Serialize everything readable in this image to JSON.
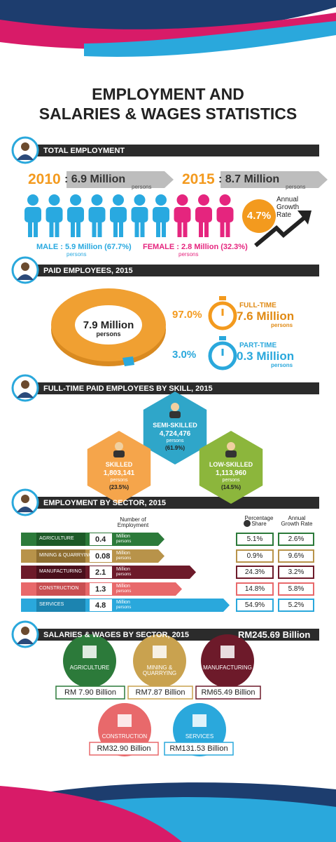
{
  "header": {
    "title_lines": [
      "EMPLOYMENT AND",
      "SALARIES & WAGES STATISTICS"
    ]
  },
  "total_employment": {
    "heading": "TOTAL EMPLOYMENT",
    "years": [
      {
        "year": "2010",
        "value": ": 6.9 Million",
        "unit": "persons"
      },
      {
        "year": "2015",
        "value": ": 8.7 Million",
        "unit": "persons"
      }
    ],
    "growth": {
      "value": "4.7%",
      "label": "Annual Growth Rate"
    },
    "male": {
      "label": "MALE : 5.9 Million (67.7%)",
      "unit": "persons"
    },
    "female": {
      "label": "FEMALE : 2.8 Million (32.3%)",
      "unit": "persons"
    }
  },
  "paid_employees": {
    "heading": "PAID EMPLOYEES, 2015",
    "total": "7.9 Million",
    "total_unit": "persons",
    "types": [
      {
        "share": "97.0%",
        "label": "FULL-TIME",
        "value": "7.6 Million",
        "unit": "persons"
      },
      {
        "share": "3.0%",
        "label": "PART-TIME",
        "value": "0.3 Million",
        "unit": "persons"
      }
    ]
  },
  "skills": {
    "heading": "FULL-TIME PAID EMPLOYEES BY SKILL, 2015",
    "groups": [
      {
        "label": "SEMI-SKILLED",
        "value": "4,724,476",
        "unit": "persons",
        "share": "(61.9%)"
      },
      {
        "label": "SKILLED",
        "value": "1,803,141",
        "unit": "persons",
        "share": "(23.5%)"
      },
      {
        "label": "LOW-SKILLED",
        "value": "1,113,960",
        "unit": "persons",
        "share": "(14.5%)"
      }
    ]
  },
  "sectors": {
    "heading": "EMPLOYMENT BY SECTOR, 2015",
    "columns": [
      "Number of Employment",
      "Percentage Share",
      "Annual Growth Rate"
    ],
    "rows": [
      {
        "name": "AGRICULTURE",
        "employment": "0.4",
        "unit": "Million",
        "unit2": "persons",
        "share": "5.1%",
        "growth": "2.6%"
      },
      {
        "name": "MINING & QUARRYING",
        "employment": "0.08",
        "unit": "Million",
        "unit2": "persons",
        "share": "0.9%",
        "growth": "9.6%"
      },
      {
        "name": "MANUFACTURING",
        "employment": "2.1",
        "unit": "Million",
        "unit2": "persons",
        "share": "24.3%",
        "growth": "3.2%"
      },
      {
        "name": "CONSTRUCTION",
        "employment": "1.3",
        "unit": "Million",
        "unit2": "persons",
        "share": "14.8%",
        "growth": "5.8%"
      },
      {
        "name": "SERVICES",
        "employment": "4.8",
        "unit": "Million",
        "unit2": "persons",
        "share": "54.9%",
        "growth": "5.2%"
      }
    ]
  },
  "salaries": {
    "heading": "SALARIES & WAGES BY SECTOR, 2015",
    "total": "RM245.69 Billion",
    "sectors": [
      {
        "name": "AGRICULTURE",
        "value": "RM 7.90 Billion"
      },
      {
        "name": "MINING & QUARRYING",
        "value": "RM7.87 Billion"
      },
      {
        "name": "MANUFACTURING",
        "value": "RM65.49 Billion"
      },
      {
        "name": "CONSTRUCTION",
        "value": "RM32.90 Billion"
      },
      {
        "name": "SERVICES",
        "value": "RM131.53 Billion"
      }
    ]
  }
}
